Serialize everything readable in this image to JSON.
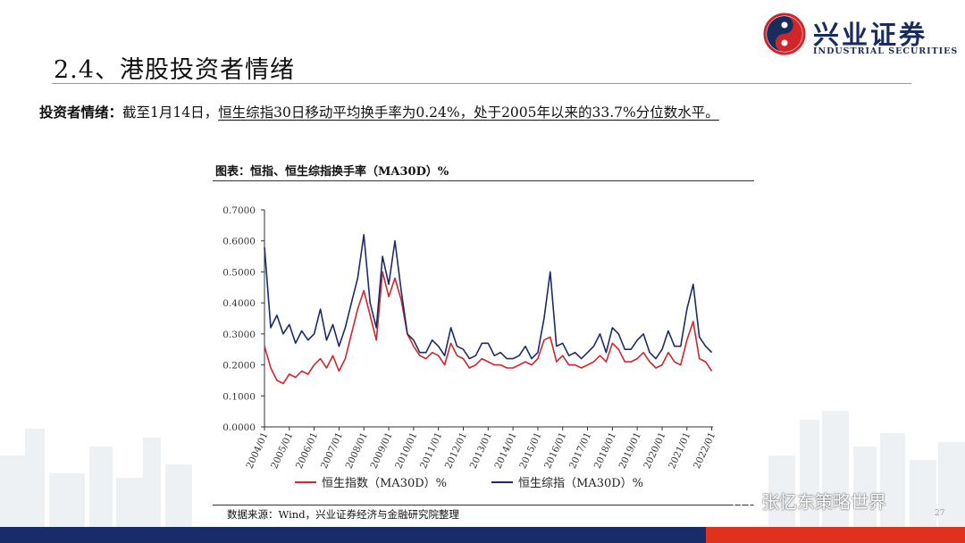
{
  "header": {
    "section_title": "2.4、港股投资者情绪",
    "logo_name": "兴业证券",
    "logo_sub": "INDUSTRIAL SECURITIES"
  },
  "summary": {
    "lead": "投资者情绪：",
    "plain": "截至1月14日，",
    "underlined": "恒生综指30日移动平均换手率为0.24%，处于2005年以来的33.7%分位数水平。"
  },
  "chart_title": "图表：恒指、恒生综指换手率（MA30D）%",
  "source": "数据来源：Wind，兴业证券经济与金融研究院整理",
  "watermark": "张忆东策略世界",
  "page_number": "27",
  "colors": {
    "red": "#d0262a",
    "navy": "#1c2a6b",
    "axis": "#555555"
  },
  "chart_data": {
    "type": "line",
    "title": "图表：恒指、恒生综指换手率（MA30D）%",
    "ylim": [
      0,
      0.7
    ],
    "yticks": [
      "0.0000",
      "0.1000",
      "0.2000",
      "0.3000",
      "0.4000",
      "0.5000",
      "0.6000",
      "0.7000"
    ],
    "xticks": [
      "2004/01",
      "2005/01",
      "2006/01",
      "2007/01",
      "2008/01",
      "2009/01",
      "2010/01",
      "2011/01",
      "2012/01",
      "2013/01",
      "2014/01",
      "2015/01",
      "2016/01",
      "2017/01",
      "2018/01",
      "2019/01",
      "2020/01",
      "2021/01",
      "2022/01"
    ],
    "x": [
      2004.0,
      2004.25,
      2004.5,
      2004.75,
      2005.0,
      2005.25,
      2005.5,
      2005.75,
      2006.0,
      2006.25,
      2006.5,
      2006.75,
      2007.0,
      2007.25,
      2007.5,
      2007.75,
      2008.0,
      2008.25,
      2008.5,
      2008.75,
      2009.0,
      2009.25,
      2009.5,
      2009.75,
      2010.0,
      2010.25,
      2010.5,
      2010.75,
      2011.0,
      2011.25,
      2011.5,
      2011.75,
      2012.0,
      2012.25,
      2012.5,
      2012.75,
      2013.0,
      2013.25,
      2013.5,
      2013.75,
      2014.0,
      2014.25,
      2014.5,
      2014.75,
      2015.0,
      2015.25,
      2015.5,
      2015.75,
      2016.0,
      2016.25,
      2016.5,
      2016.75,
      2017.0,
      2017.25,
      2017.5,
      2017.75,
      2018.0,
      2018.25,
      2018.5,
      2018.75,
      2019.0,
      2019.25,
      2019.5,
      2019.75,
      2020.0,
      2020.25,
      2020.5,
      2020.75,
      2021.0,
      2021.25,
      2021.5,
      2021.75,
      2022.0
    ],
    "series": [
      {
        "name": "恒生指数（MA30D）%",
        "color": "#d0262a",
        "values": [
          0.26,
          0.19,
          0.15,
          0.14,
          0.17,
          0.16,
          0.18,
          0.17,
          0.2,
          0.22,
          0.19,
          0.23,
          0.18,
          0.22,
          0.3,
          0.38,
          0.44,
          0.36,
          0.28,
          0.5,
          0.42,
          0.48,
          0.41,
          0.3,
          0.26,
          0.23,
          0.22,
          0.24,
          0.23,
          0.2,
          0.27,
          0.23,
          0.22,
          0.19,
          0.2,
          0.22,
          0.21,
          0.2,
          0.2,
          0.19,
          0.19,
          0.2,
          0.21,
          0.2,
          0.22,
          0.28,
          0.29,
          0.21,
          0.23,
          0.2,
          0.2,
          0.19,
          0.2,
          0.21,
          0.23,
          0.21,
          0.27,
          0.25,
          0.21,
          0.21,
          0.22,
          0.24,
          0.21,
          0.19,
          0.2,
          0.24,
          0.21,
          0.2,
          0.28,
          0.34,
          0.22,
          0.21,
          0.18
        ]
      },
      {
        "name": "恒生综指（MA30D）%",
        "color": "#1c2a6b",
        "values": [
          0.58,
          0.32,
          0.36,
          0.3,
          0.33,
          0.27,
          0.31,
          0.28,
          0.3,
          0.38,
          0.28,
          0.33,
          0.26,
          0.32,
          0.4,
          0.48,
          0.62,
          0.4,
          0.32,
          0.55,
          0.46,
          0.6,
          0.44,
          0.3,
          0.28,
          0.24,
          0.24,
          0.28,
          0.26,
          0.23,
          0.32,
          0.26,
          0.25,
          0.22,
          0.23,
          0.27,
          0.27,
          0.23,
          0.24,
          0.22,
          0.22,
          0.23,
          0.26,
          0.22,
          0.24,
          0.35,
          0.5,
          0.26,
          0.27,
          0.23,
          0.24,
          0.22,
          0.24,
          0.26,
          0.3,
          0.24,
          0.32,
          0.3,
          0.25,
          0.25,
          0.28,
          0.3,
          0.24,
          0.22,
          0.25,
          0.31,
          0.26,
          0.26,
          0.38,
          0.46,
          0.29,
          0.26,
          0.24
        ]
      }
    ]
  }
}
